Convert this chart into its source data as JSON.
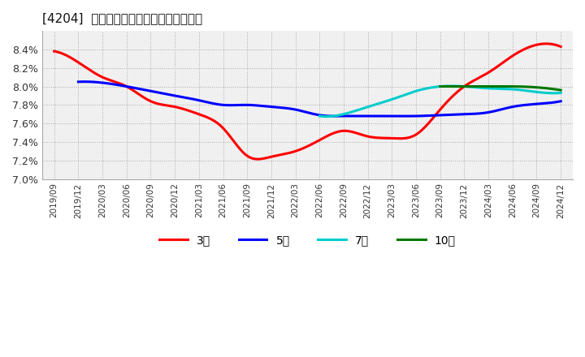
{
  "title": "[4204]  経常利益マージンの平均値の推移",
  "background_color": "#ffffff",
  "plot_bg_color": "#f0f0f0",
  "grid_color": "#aaaaaa",
  "ylim": [
    0.07,
    0.086
  ],
  "yticks": [
    0.07,
    0.072,
    0.074,
    0.076,
    0.078,
    0.08,
    0.082,
    0.084
  ],
  "series": {
    "3年": {
      "color": "#ff0000",
      "points": [
        [
          0,
          0.0838
        ],
        [
          1,
          0.0826
        ],
        [
          2,
          0.081
        ],
        [
          3,
          0.08
        ],
        [
          4,
          0.0784
        ],
        [
          5,
          0.0778
        ],
        [
          6,
          0.077
        ],
        [
          7,
          0.0755
        ],
        [
          8,
          0.0725
        ],
        [
          9,
          0.0724
        ],
        [
          10,
          0.073
        ],
        [
          11,
          0.0742
        ],
        [
          12,
          0.0752
        ],
        [
          13,
          0.0746
        ],
        [
          14,
          0.0744
        ],
        [
          15,
          0.0748
        ],
        [
          16,
          0.0775
        ],
        [
          17,
          0.08
        ],
        [
          18,
          0.0815
        ],
        [
          19,
          0.0833
        ],
        [
          20,
          0.0845
        ],
        [
          21,
          0.0843
        ]
      ]
    },
    "5年": {
      "color": "#0000ff",
      "points": [
        [
          1,
          0.0805
        ],
        [
          2,
          0.0804
        ],
        [
          3,
          0.08
        ],
        [
          4,
          0.0795
        ],
        [
          5,
          0.079
        ],
        [
          6,
          0.0785
        ],
        [
          7,
          0.078
        ],
        [
          8,
          0.078
        ],
        [
          9,
          0.0778
        ],
        [
          10,
          0.0775
        ],
        [
          11,
          0.0769
        ],
        [
          12,
          0.0768
        ],
        [
          13,
          0.0768
        ],
        [
          14,
          0.0768
        ],
        [
          15,
          0.0768
        ],
        [
          16,
          0.0769
        ],
        [
          17,
          0.077
        ],
        [
          18,
          0.0772
        ],
        [
          19,
          0.0778
        ],
        [
          20,
          0.0781
        ],
        [
          21,
          0.0784
        ]
      ]
    },
    "7年": {
      "color": "#00cccc",
      "points": [
        [
          11,
          0.0768
        ],
        [
          12,
          0.077
        ],
        [
          13,
          0.0778
        ],
        [
          14,
          0.0786
        ],
        [
          15,
          0.0795
        ],
        [
          16,
          0.08
        ],
        [
          17,
          0.08
        ],
        [
          18,
          0.0798
        ],
        [
          19,
          0.0797
        ],
        [
          20,
          0.0794
        ],
        [
          21,
          0.0793
        ]
      ]
    },
    "10年": {
      "color": "#007700",
      "points": [
        [
          16,
          0.08
        ],
        [
          17,
          0.08
        ],
        [
          18,
          0.08
        ],
        [
          19,
          0.08
        ],
        [
          20,
          0.0799
        ],
        [
          21,
          0.0796
        ]
      ]
    }
  },
  "legend_labels": [
    "3年",
    "5年",
    "7年",
    "10年"
  ],
  "legend_colors": [
    "#ff0000",
    "#0000ff",
    "#00cccc",
    "#007700"
  ],
  "xtick_labels": [
    "2019/09",
    "2019/12",
    "2020/03",
    "2020/06",
    "2020/09",
    "2020/12",
    "2021/03",
    "2021/06",
    "2021/09",
    "2021/12",
    "2022/03",
    "2022/06",
    "2022/09",
    "2022/12",
    "2023/03",
    "2023/06",
    "2023/09",
    "2023/12",
    "2024/03",
    "2024/06",
    "2024/09",
    "2024/12"
  ]
}
